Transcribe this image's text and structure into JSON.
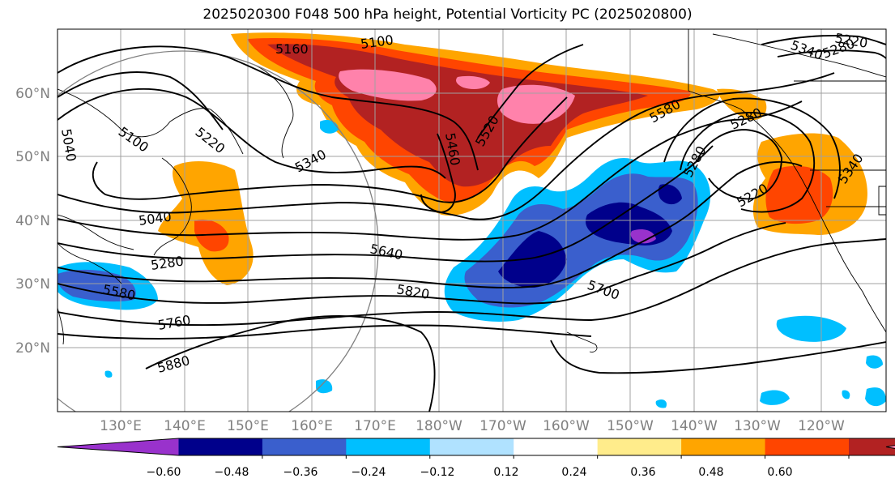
{
  "title": "2025020300 F048 500 hPa height, Potential Vorticity PC (2025020800)",
  "map": {
    "lat_labels": [
      "60°N",
      "50°N",
      "40°N",
      "30°N",
      "20°N"
    ],
    "lon_labels": [
      "130°E",
      "140°E",
      "150°E",
      "160°E",
      "170°E",
      "180°W",
      "170°W",
      "160°W",
      "150°W",
      "140°W",
      "130°W",
      "120°W"
    ],
    "contour_labels": [
      "5160",
      "5100",
      "5040",
      "5100",
      "5220",
      "5340",
      "5040",
      "5280",
      "5580",
      "5640",
      "5820",
      "5760",
      "5880",
      "5460",
      "5520",
      "5580",
      "5700",
      "5280",
      "5220",
      "5340",
      "5280",
      "5340",
      "5280",
      "5220"
    ]
  },
  "colorbar": {
    "tick_labels": [
      "−0.60",
      "−0.48",
      "−0.36",
      "−0.24",
      "−0.12",
      "0.12",
      "0.24",
      "0.36",
      "0.48",
      "0.60"
    ],
    "colors": [
      "#9932cc",
      "#00008b",
      "#3a5fcd",
      "#00bfff",
      "#b0e2ff",
      "#ffffff",
      "#ffec8b",
      "#ffa500",
      "#ff4500",
      "#b22222",
      "#ff82ab"
    ]
  }
}
